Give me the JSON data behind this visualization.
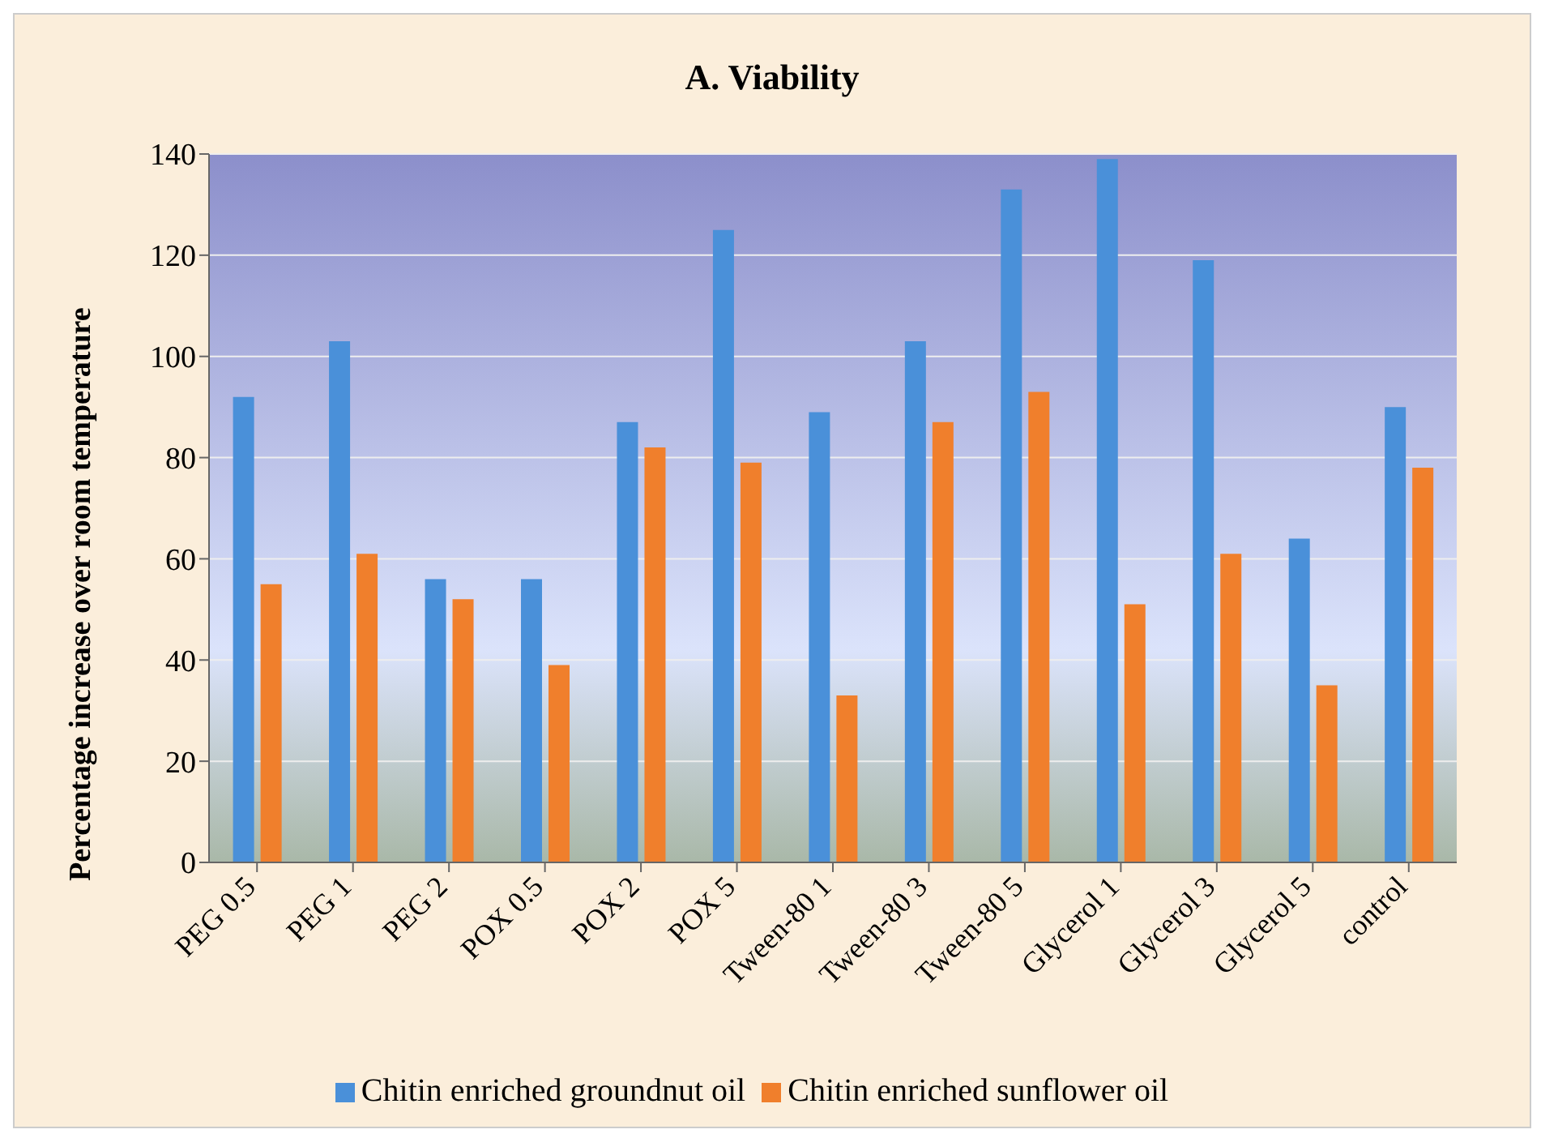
{
  "chart_data": {
    "type": "bar",
    "title": "A. Viability",
    "ylabel": "Percentage increase over room temperature",
    "categories": [
      "PEG 0.5",
      "PEG 1",
      "PEG 2",
      "POX 0.5",
      "POX 2",
      "POX 5",
      "Tween-80 1",
      "Tween-80 3",
      "Tween-80 5",
      "Glycerol 1",
      "Glycerol 3",
      "Glycerol 5",
      "control"
    ],
    "series": [
      {
        "name": "Chitin enriched groundnut oil",
        "color": "#4a90d9",
        "values": [
          92,
          103,
          56,
          56,
          87,
          125,
          89,
          103,
          133,
          139,
          119,
          64,
          90
        ]
      },
      {
        "name": "Chitin enriched sunflower oil",
        "color": "#f07f2c",
        "values": [
          55,
          61,
          52,
          39,
          82,
          79,
          33,
          87,
          93,
          51,
          61,
          35,
          78
        ]
      }
    ],
    "ylim": [
      0,
      140
    ],
    "yticks": [
      0,
      20,
      40,
      60,
      80,
      100,
      120,
      140
    ],
    "grid": "y",
    "legend": "bottom"
  }
}
